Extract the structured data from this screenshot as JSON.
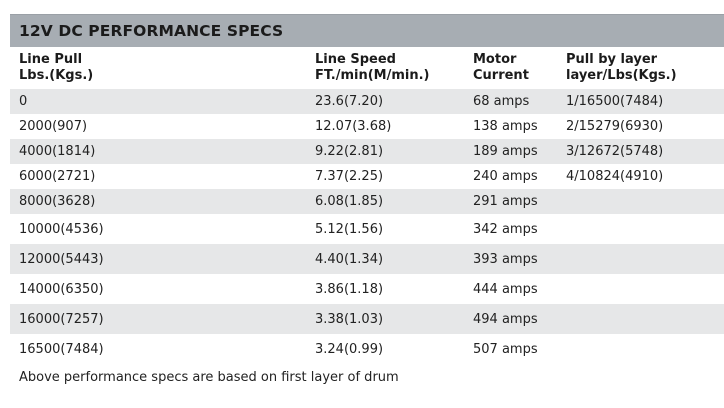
{
  "title": "12V DC PERFORMANCE SPECS",
  "headers": [
    {
      "line1": "Line Pull",
      "line2": "Lbs.(Kgs.)"
    },
    {
      "line1": "Line Speed",
      "line2": "FT./min(M/min.)"
    },
    {
      "line1": "Motor",
      "line2": "Current"
    },
    {
      "line1": "Pull by layer",
      "line2": "layer/Lbs(Kgs.)"
    }
  ],
  "rows": [
    {
      "pull": "0",
      "speed": "23.6(7.20)",
      "current": "68 amps",
      "layer": "1/16500(7484)"
    },
    {
      "pull": "2000(907)",
      "speed": "12.07(3.68)",
      "current": "138 amps",
      "layer": "2/15279(6930)"
    },
    {
      "pull": "4000(1814)",
      "speed": "9.22(2.81)",
      "current": "189 amps",
      "layer": "3/12672(5748)"
    },
    {
      "pull": "6000(2721)",
      "speed": "7.37(2.25)",
      "current": "240 amps",
      "layer": "4/10824(4910)"
    },
    {
      "pull": "8000(3628)",
      "speed": "6.08(1.85)",
      "current": "291 amps",
      "layer": ""
    },
    {
      "pull": "10000(4536)",
      "speed": "5.12(1.56)",
      "current": "342 amps",
      "layer": ""
    },
    {
      "pull": "12000(5443)",
      "speed": "4.40(1.34)",
      "current": "393 amps",
      "layer": ""
    },
    {
      "pull": "14000(6350)",
      "speed": "3.86(1.18)",
      "current": "444 amps",
      "layer": ""
    },
    {
      "pull": "16000(7257)",
      "speed": "3.38(1.03)",
      "current": "494 amps",
      "layer": ""
    },
    {
      "pull": "16500(7484)",
      "speed": "3.24(0.99)",
      "current": "507 amps",
      "layer": ""
    }
  ],
  "footnote": "Above performance specs are based on first layer of drum",
  "colors": {
    "title_bar": "#a7adb3",
    "row_shade": "#e6e7e8",
    "text": "#1f1f1f"
  }
}
